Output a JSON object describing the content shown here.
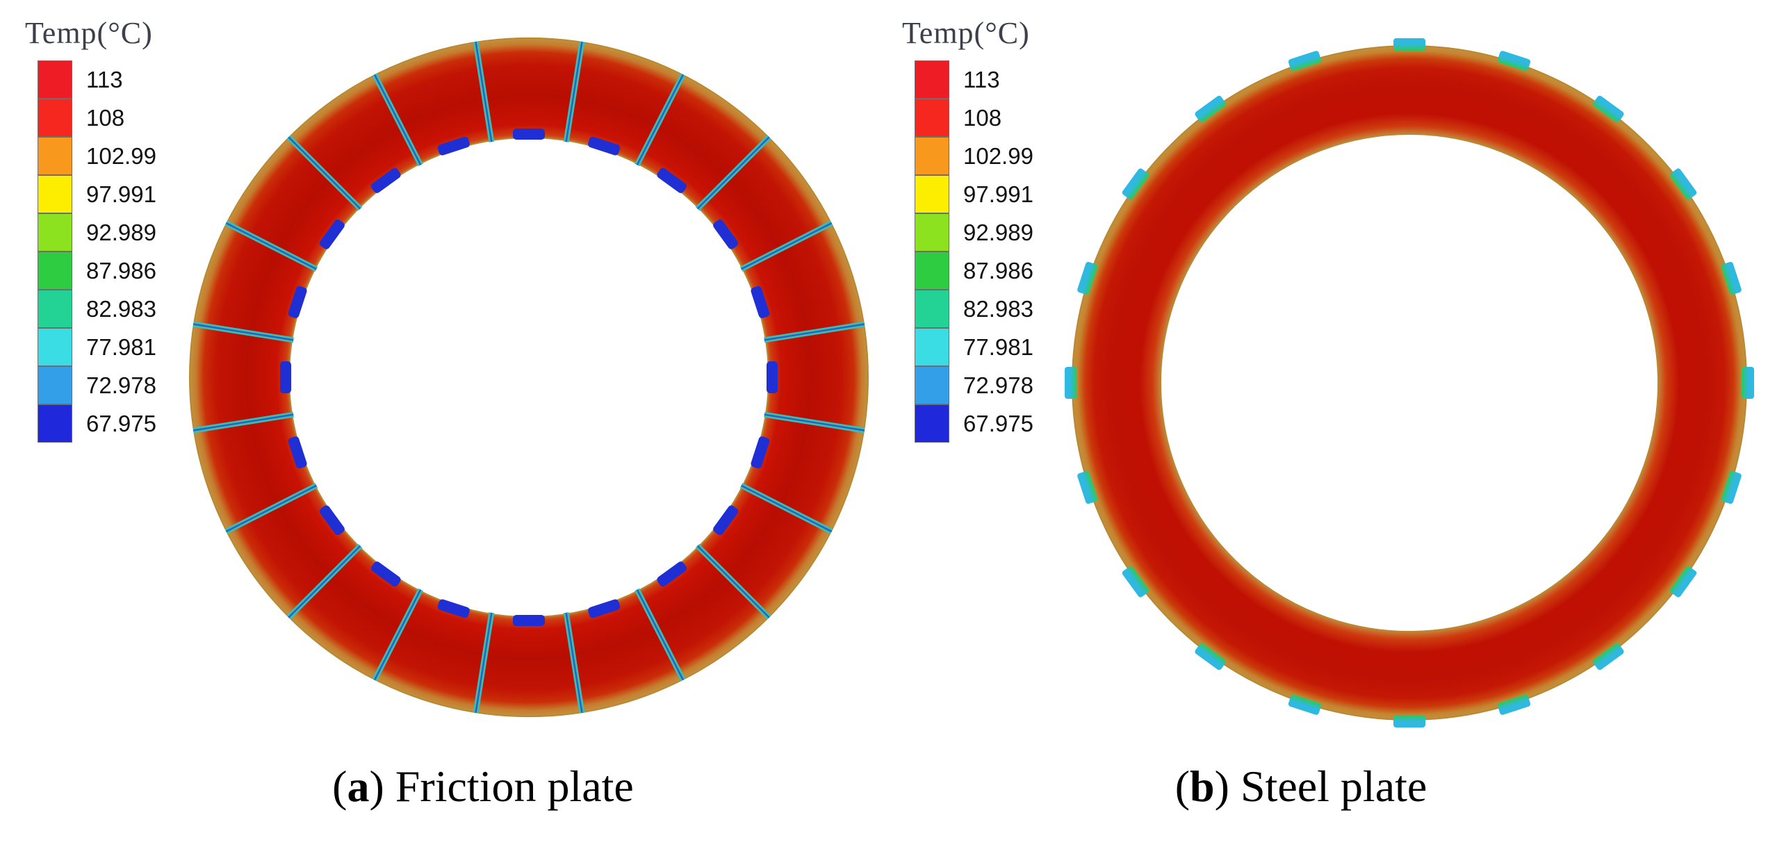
{
  "legend": {
    "title": "Temp(°C)",
    "entries": [
      {
        "value": "113",
        "color": "#ee1c25"
      },
      {
        "value": "108",
        "color": "#f5271e"
      },
      {
        "value": "102.99",
        "color": "#f8981d"
      },
      {
        "value": "97.991",
        "color": "#fdee00"
      },
      {
        "value": "92.989",
        "color": "#8ce21e"
      },
      {
        "value": "87.986",
        "color": "#2ecc40"
      },
      {
        "value": "82.983",
        "color": "#23d295"
      },
      {
        "value": "77.981",
        "color": "#3bdde4"
      },
      {
        "value": "72.978",
        "color": "#339fe8"
      },
      {
        "value": "67.975",
        "color": "#2028dc"
      }
    ]
  },
  "captions": {
    "open": "(",
    "close": ") ",
    "panels": [
      {
        "letter": "a",
        "text": "Friction plate"
      },
      {
        "letter": "b",
        "text": "Steel plate"
      }
    ]
  },
  "chart_data": {
    "type": "heatmap",
    "title": "Temp(°C)",
    "units": "°C",
    "legend_position": "top-left",
    "levels": [
      113,
      108,
      102.99,
      97.991,
      92.989,
      87.986,
      82.983,
      77.981,
      72.978,
      67.975
    ],
    "level_colors": [
      "#ee1c25",
      "#f5271e",
      "#f8981d",
      "#fdee00",
      "#8ce21e",
      "#2ecc40",
      "#23d295",
      "#3bdde4",
      "#339fe8",
      "#2028dc"
    ],
    "panels": [
      {
        "name": "Friction plate",
        "caption": "(a) Friction plate",
        "shape": "annular ring",
        "body_temp_range_c": [
          108,
          113
        ],
        "edge_rim_temp_c": "~100-105",
        "radial_grooves": {
          "count": 20,
          "temp_c": "~73-83",
          "color": "#38bfb2",
          "core_color": "#2a50c8"
        },
        "inner_edge_marks": {
          "count": 20,
          "temp_c": "~68-73",
          "color": "#1f2fd4"
        }
      },
      {
        "name": "Steel plate",
        "caption": "(b) Steel plate",
        "shape": "annular ring",
        "body_temp_range_c": [
          108,
          113
        ],
        "edge_rim_temp_c": "~100-105",
        "outer_notches": {
          "count": 20,
          "temp_c": "~73-88",
          "colors": [
            "#2fb9e0",
            "#2fc75a"
          ]
        }
      }
    ]
  }
}
